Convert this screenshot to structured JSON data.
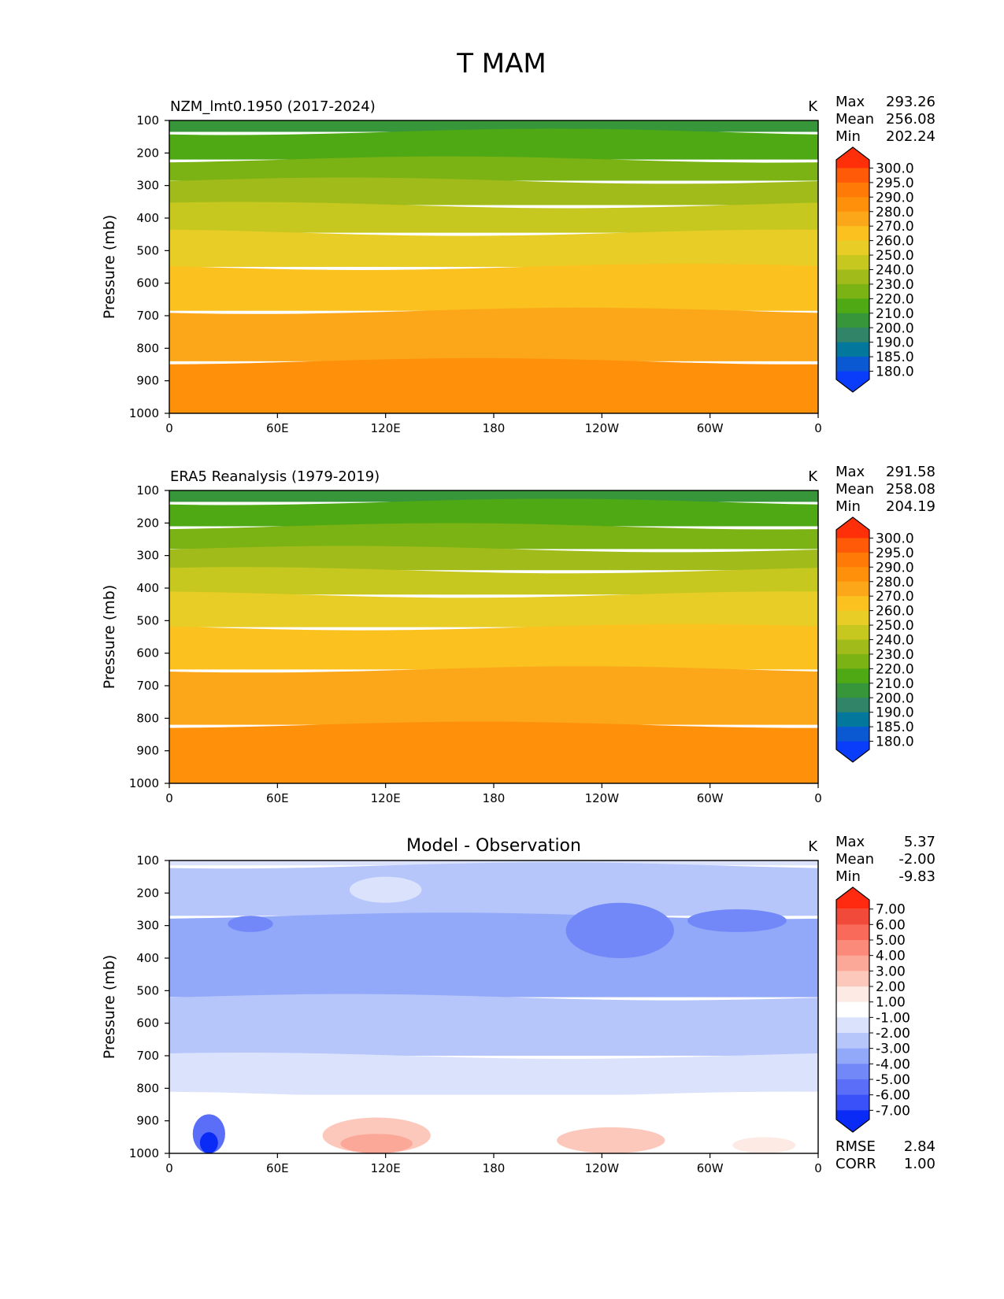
{
  "figure": {
    "title": "T MAM"
  },
  "chart_data": [
    {
      "type": "heatmap",
      "title": "NZM_lmt0.1950 (2017-2024)",
      "units": "K",
      "ylabel": "Pressure (mb)",
      "xticks": [
        "0",
        "60E",
        "120E",
        "180",
        "120W",
        "60W",
        "0"
      ],
      "yticks": [
        "100",
        "200",
        "300",
        "400",
        "500",
        "600",
        "700",
        "800",
        "900",
        "1000"
      ],
      "ylim": [
        1000,
        100
      ],
      "stats": [
        {
          "label": "Max",
          "value": "293.26"
        },
        {
          "label": "Mean",
          "value": "256.08"
        },
        {
          "label": "Min",
          "value": "202.24"
        }
      ],
      "levels": [
        "300.0",
        "295.0",
        "290.0",
        "280.0",
        "270.0",
        "260.0",
        "250.0",
        "240.0",
        "230.0",
        "220.0",
        "210.0",
        "200.0",
        "190.0",
        "185.0",
        "180.0"
      ],
      "colors": [
        "#ff2f0a",
        "#ff5a08",
        "#ff7a06",
        "#ff900a",
        "#fca71a",
        "#fac11f",
        "#e8cd26",
        "#c6c71f",
        "#a1bc1a",
        "#7bb214",
        "#4ea915",
        "#37963a",
        "#318467",
        "#04789c",
        "#0a58d2",
        "#0a3dfa"
      ],
      "bands": [
        {
          "top": 100,
          "bottom": 135,
          "color": "#37963a"
        },
        {
          "top": 135,
          "bottom": 220,
          "color": "#4ea915"
        },
        {
          "top": 220,
          "bottom": 285,
          "color": "#7bb214"
        },
        {
          "top": 285,
          "bottom": 360,
          "color": "#a1bc1a"
        },
        {
          "top": 360,
          "bottom": 445,
          "color": "#c6c71f"
        },
        {
          "top": 445,
          "bottom": 550,
          "color": "#e8cd26"
        },
        {
          "top": 550,
          "bottom": 685,
          "color": "#fac11f"
        },
        {
          "top": 685,
          "bottom": 840,
          "color": "#fca71a"
        },
        {
          "top": 840,
          "bottom": 1000,
          "color": "#ff900a"
        }
      ]
    },
    {
      "type": "heatmap",
      "title": "ERA5 Reanalysis (1979-2019)",
      "units": "K",
      "ylabel": "Pressure (mb)",
      "xticks": [
        "0",
        "60E",
        "120E",
        "180",
        "120W",
        "60W",
        "0"
      ],
      "yticks": [
        "100",
        "200",
        "300",
        "400",
        "500",
        "600",
        "700",
        "800",
        "900",
        "1000"
      ],
      "ylim": [
        1000,
        100
      ],
      "stats": [
        {
          "label": "Max",
          "value": "291.58"
        },
        {
          "label": "Mean",
          "value": "258.08"
        },
        {
          "label": "Min",
          "value": "204.19"
        }
      ],
      "levels": [
        "300.0",
        "295.0",
        "290.0",
        "280.0",
        "270.0",
        "260.0",
        "250.0",
        "240.0",
        "230.0",
        "220.0",
        "210.0",
        "200.0",
        "190.0",
        "185.0",
        "180.0"
      ],
      "colors": [
        "#ff2f0a",
        "#ff5a08",
        "#ff7a06",
        "#ff900a",
        "#fca71a",
        "#fac11f",
        "#e8cd26",
        "#c6c71f",
        "#a1bc1a",
        "#7bb214",
        "#4ea915",
        "#37963a",
        "#318467",
        "#04789c",
        "#0a58d2",
        "#0a3dfa"
      ],
      "bands": [
        {
          "top": 100,
          "bottom": 135,
          "color": "#37963a"
        },
        {
          "top": 135,
          "bottom": 210,
          "color": "#4ea915"
        },
        {
          "top": 210,
          "bottom": 280,
          "color": "#7bb214"
        },
        {
          "top": 280,
          "bottom": 345,
          "color": "#a1bc1a"
        },
        {
          "top": 345,
          "bottom": 420,
          "color": "#c6c71f"
        },
        {
          "top": 420,
          "bottom": 520,
          "color": "#e8cd26"
        },
        {
          "top": 520,
          "bottom": 650,
          "color": "#fac11f"
        },
        {
          "top": 650,
          "bottom": 820,
          "color": "#fca71a"
        },
        {
          "top": 820,
          "bottom": 1000,
          "color": "#ff900a"
        }
      ]
    },
    {
      "type": "heatmap",
      "title": "Model - Observation",
      "units": "K",
      "ylabel": "Pressure (mb)",
      "xticks": [
        "0",
        "60E",
        "120E",
        "180",
        "120W",
        "60W",
        "0"
      ],
      "yticks": [
        "100",
        "200",
        "300",
        "400",
        "500",
        "600",
        "700",
        "800",
        "900",
        "1000"
      ],
      "ylim": [
        1000,
        100
      ],
      "stats": [
        {
          "label": "Max",
          "value": "5.37"
        },
        {
          "label": "Mean",
          "value": "-2.00"
        },
        {
          "label": "Min",
          "value": "-9.83"
        }
      ],
      "extra_stats": [
        {
          "label": "RMSE",
          "value": "2.84"
        },
        {
          "label": "CORR",
          "value": "1.00"
        }
      ],
      "levels": [
        "7.00",
        "6.00",
        "5.00",
        "4.00",
        "3.00",
        "2.00",
        "1.00",
        "-1.00",
        "-2.00",
        "-3.00",
        "-4.00",
        "-5.00",
        "-6.00",
        "-7.00"
      ],
      "colors": [
        "#ff2a10",
        "#f24a3a",
        "#fa6a5a",
        "#fc8a7a",
        "#fca898",
        "#fdc8bc",
        "#feeae4",
        "#ffffff",
        "#dbe3fc",
        "#b6c6fb",
        "#92a8f9",
        "#7388f8",
        "#5a6ef8",
        "#3a50f8",
        "#0a2af5"
      ],
      "bands": [
        {
          "top": 100,
          "bottom": 115,
          "color": "#dbe3fc"
        },
        {
          "top": 115,
          "bottom": 270,
          "color": "#b6c6fb"
        },
        {
          "top": 270,
          "bottom": 520,
          "color": "#92a8f9"
        },
        {
          "top": 520,
          "bottom": 700,
          "color": "#b6c6fb"
        },
        {
          "top": 700,
          "bottom": 820,
          "color": "#dbe3fc"
        },
        {
          "top": 820,
          "bottom": 1000,
          "color": "#ffffff"
        }
      ],
      "patches": [
        {
          "lon": 120,
          "lon_width": 40,
          "p_top": 150,
          "p_bottom": 230,
          "color": "#dbe3fc"
        },
        {
          "lon": 250,
          "lon_width": 60,
          "p_top": 230,
          "p_bottom": 400,
          "color": "#7388f8"
        },
        {
          "lon": 315,
          "lon_width": 55,
          "p_top": 250,
          "p_bottom": 320,
          "color": "#7388f8"
        },
        {
          "lon": 45,
          "lon_width": 25,
          "p_top": 270,
          "p_bottom": 320,
          "color": "#7388f8"
        },
        {
          "lon": 22,
          "lon_width": 18,
          "p_top": 880,
          "p_bottom": 1000,
          "color": "#5a6ef8"
        },
        {
          "lon": 22,
          "lon_width": 10,
          "p_top": 935,
          "p_bottom": 1000,
          "color": "#0a2af5"
        },
        {
          "lon": 115,
          "lon_width": 60,
          "p_top": 890,
          "p_bottom": 1000,
          "color": "#fdc8bc"
        },
        {
          "lon": 115,
          "lon_width": 40,
          "p_top": 940,
          "p_bottom": 1000,
          "color": "#fca898"
        },
        {
          "lon": 245,
          "lon_width": 60,
          "p_top": 920,
          "p_bottom": 1000,
          "color": "#fdc8bc"
        },
        {
          "lon": 330,
          "lon_width": 35,
          "p_top": 950,
          "p_bottom": 1000,
          "color": "#feeae4"
        }
      ]
    }
  ]
}
